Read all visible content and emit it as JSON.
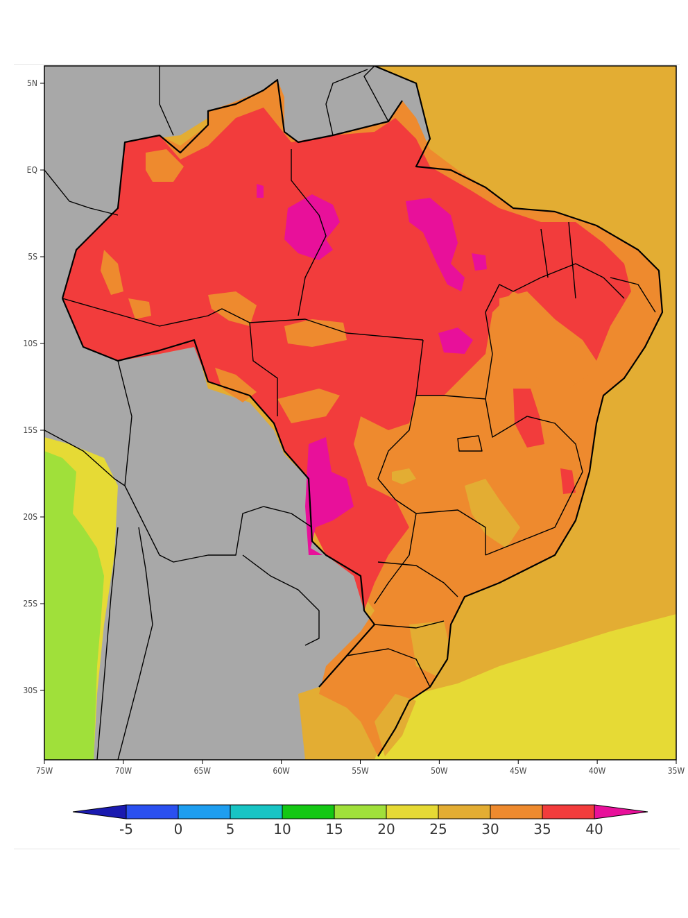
{
  "map": {
    "lat_labels": [
      "5N",
      "EQ",
      "5S",
      "10S",
      "15S",
      "20S",
      "25S",
      "30S"
    ],
    "lat_values": [
      5,
      0,
      -5,
      -10,
      -15,
      -20,
      -25,
      -30
    ],
    "lon_labels": [
      "75W",
      "70W",
      "65W",
      "60W",
      "55W",
      "50W",
      "45W",
      "40W",
      "35W"
    ],
    "lon_values": [
      -75,
      -70,
      -65,
      -60,
      -55,
      -50,
      -45,
      -40,
      -35
    ],
    "extent": {
      "lon_min": -75,
      "lon_max": -35,
      "lat_min": -34,
      "lat_max": 6
    },
    "colors": {
      "land_outside": "#a8a8a8",
      "ocean_25_30": "#e3ad33",
      "band_20_25": "#e6da35",
      "band_15_20": "#a0e03a",
      "band_30_35": "#ee8a2e",
      "band_35_40": "#f23c3c",
      "band_gt_40": "#e8109a"
    }
  },
  "colorbar": {
    "labels": [
      "-5",
      "0",
      "5",
      "10",
      "15",
      "20",
      "25",
      "30",
      "35",
      "40"
    ],
    "colors": [
      "#1a1ab0",
      "#2a50f0",
      "#1e9ef0",
      "#18c4c4",
      "#14c814",
      "#a0e03a",
      "#e6da35",
      "#e3ad33",
      "#ee8a2e",
      "#f23c3c",
      "#e8109a"
    ]
  }
}
